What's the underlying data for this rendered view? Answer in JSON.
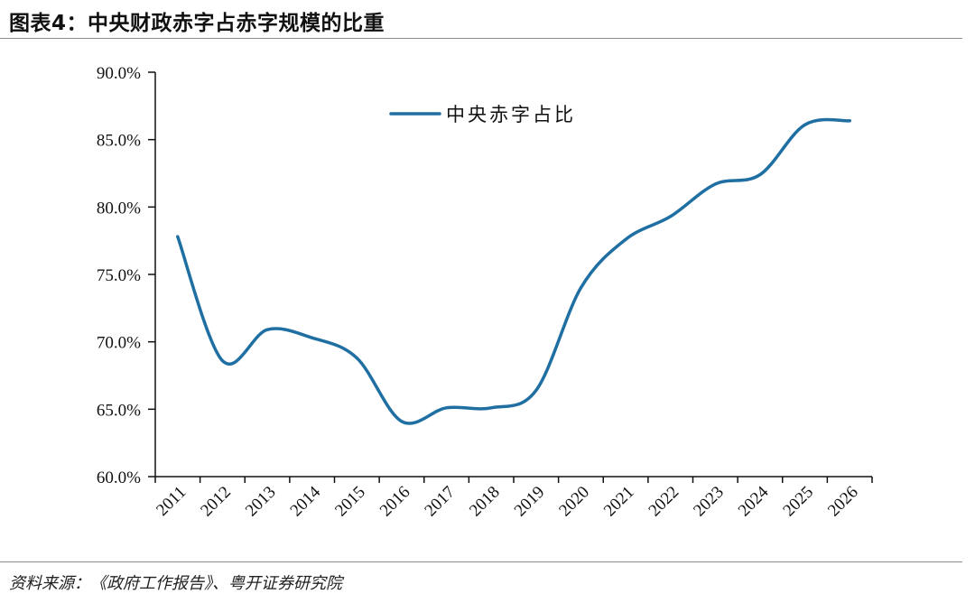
{
  "figure": {
    "title": "图表4：中央财政赤字占赤字规模的比重",
    "source": "资料来源：《政府工作报告》、粤开证券研究院"
  },
  "chart_data": {
    "type": "line",
    "title": "图表4：中央财政赤字占赤字规模的比重",
    "xlabel": "",
    "ylabel": "",
    "categories": [
      "2011",
      "2012",
      "2013",
      "2014",
      "2015",
      "2016",
      "2017",
      "2018",
      "2019",
      "2020",
      "2021",
      "2022",
      "2023",
      "2024",
      "2025",
      "2026"
    ],
    "y_tick_labels": [
      "60.0%",
      "65.0%",
      "70.0%",
      "75.0%",
      "80.0%",
      "85.0%",
      "90.0%"
    ],
    "ylim": [
      60,
      90
    ],
    "y_step": 5,
    "grid": false,
    "legend_position": "top-center",
    "series": [
      {
        "name": "中央赤字占比",
        "color": "#1f6fa3",
        "values": [
          77.8,
          68.6,
          70.9,
          70.3,
          68.8,
          64.1,
          65.1,
          65.1,
          66.4,
          74.0,
          77.6,
          79.3,
          81.7,
          82.4,
          86.1,
          86.4
        ]
      }
    ]
  }
}
